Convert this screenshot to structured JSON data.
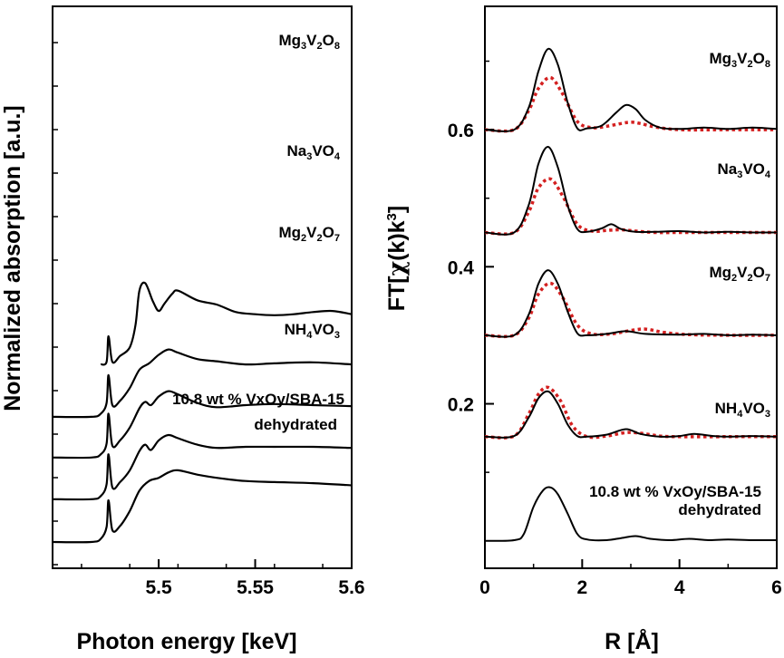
{
  "chart_data": [
    {
      "type": "line",
      "xlabel": "Photon energy [keV]",
      "ylabel": "Normalized absorption [a.u.]",
      "xlim": [
        5.445,
        5.6
      ],
      "x_ticks": [
        "5.5",
        "5.55",
        "5.6"
      ],
      "y_tick_labels": "none",
      "series": [
        {
          "name": "Mg3V2O8",
          "label_text": [
            {
              "t": "Mg"
            },
            {
              "t": "3",
              "sub": true
            },
            {
              "t": "V"
            },
            {
              "t": "2",
              "sub": true
            },
            {
              "t": "O"
            },
            {
              "t": "8",
              "sub": true
            }
          ],
          "x": [
            5.47,
            5.473,
            5.474,
            5.476,
            5.48,
            5.485,
            5.488,
            5.49,
            5.493,
            5.497,
            5.5,
            5.503,
            5.507,
            5.51,
            5.52,
            5.53,
            5.54,
            5.55,
            5.56,
            5.57,
            5.58,
            5.59,
            5.6
          ],
          "y": [
            0.5,
            0.62,
            1.82,
            0.62,
            0.9,
            1.3,
            2.35,
            3.95,
            4.3,
            3.45,
            3.0,
            3.35,
            3.8,
            3.95,
            3.5,
            3.3,
            2.95,
            2.85,
            2.8,
            2.85,
            2.95,
            3.0,
            2.85
          ]
        },
        {
          "name": "Na3VO4",
          "label_text": [
            {
              "t": "Na"
            },
            {
              "t": "3",
              "sub": true
            },
            {
              "t": "VO"
            },
            {
              "t": "4",
              "sub": true
            }
          ],
          "x": [
            5.445,
            5.465,
            5.47,
            5.473,
            5.474,
            5.476,
            5.48,
            5.485,
            5.49,
            5.495,
            5.5,
            5.505,
            5.51,
            5.52,
            5.53,
            5.545,
            5.56,
            5.58,
            5.6
          ],
          "y": [
            0.0,
            0.0,
            0.15,
            0.65,
            1.95,
            0.55,
            0.75,
            1.35,
            2.2,
            2.5,
            2.9,
            3.15,
            3.0,
            2.7,
            2.6,
            2.45,
            2.5,
            2.55,
            2.45
          ]
        },
        {
          "name": "Mg2V2O7",
          "label_text": [
            {
              "t": "Mg"
            },
            {
              "t": "2",
              "sub": true
            },
            {
              "t": "V"
            },
            {
              "t": "2",
              "sub": true
            },
            {
              "t": "O"
            },
            {
              "t": "7",
              "sub": true
            }
          ],
          "x": [
            5.445,
            5.465,
            5.47,
            5.473,
            5.474,
            5.476,
            5.48,
            5.485,
            5.49,
            5.493,
            5.496,
            5.5,
            5.505,
            5.51,
            5.52,
            5.53,
            5.545,
            5.56,
            5.58,
            5.6
          ],
          "y": [
            0.0,
            0.0,
            0.15,
            0.65,
            2.05,
            0.55,
            0.8,
            1.4,
            2.3,
            2.6,
            2.45,
            2.85,
            3.1,
            2.95,
            2.55,
            2.35,
            2.45,
            2.5,
            2.45,
            2.4
          ]
        },
        {
          "name": "NH4VO3",
          "label_text": [
            {
              "t": "NH"
            },
            {
              "t": "4",
              "sub": true
            },
            {
              "t": "VO"
            },
            {
              "t": "3",
              "sub": true
            }
          ],
          "x": [
            5.445,
            5.465,
            5.47,
            5.473,
            5.474,
            5.476,
            5.48,
            5.485,
            5.49,
            5.493,
            5.496,
            5.5,
            5.505,
            5.51,
            5.52,
            5.53,
            5.545,
            5.56,
            5.58,
            5.6
          ],
          "y": [
            0.0,
            0.0,
            0.15,
            0.7,
            2.1,
            0.55,
            0.8,
            1.35,
            2.25,
            2.55,
            2.3,
            2.75,
            3.0,
            2.85,
            2.55,
            2.4,
            2.45,
            2.45,
            2.45,
            2.4
          ]
        },
        {
          "name": "10.8 wt % VxOy/SBA-15 dehydrated",
          "x": [
            5.445,
            5.465,
            5.47,
            5.473,
            5.474,
            5.476,
            5.48,
            5.485,
            5.49,
            5.495,
            5.5,
            5.505,
            5.51,
            5.52,
            5.53,
            5.545,
            5.56,
            5.58,
            5.6
          ],
          "y": [
            0.0,
            0.0,
            0.15,
            0.7,
            1.95,
            0.55,
            0.75,
            1.45,
            2.4,
            2.85,
            3.0,
            3.25,
            3.35,
            3.15,
            3.0,
            2.85,
            2.8,
            2.75,
            2.65
          ]
        }
      ]
    },
    {
      "type": "line",
      "xlabel": "R [Å]",
      "ylabel_parts": [
        {
          "t": "FT["
        },
        {
          "t": "χ",
          "serif": true
        },
        {
          "t": "(k)k"
        },
        {
          "t": "3",
          "sup": true
        },
        {
          "t": "]"
        }
      ],
      "xlim": [
        0,
        6
      ],
      "ylim": [
        -0.04,
        0.78
      ],
      "x_ticks": [
        0,
        2,
        4,
        6
      ],
      "y_ticks": [
        0.2,
        0.4,
        0.6
      ],
      "y_tick_labels": [
        "0.2",
        "0.4",
        "0.6"
      ],
      "series_colors": {
        "experiment": "#000000",
        "fit": "#d42020"
      },
      "series": [
        {
          "name": "Mg3V2O8",
          "label_text": [
            {
              "t": "Mg"
            },
            {
              "t": "3",
              "sub": true
            },
            {
              "t": "V"
            },
            {
              "t": "2",
              "sub": true
            },
            {
              "t": "O"
            },
            {
              "t": "8",
              "sub": true
            }
          ],
          "experiment": {
            "x": [
              0,
              0.6,
              0.9,
              1.1,
              1.3,
              1.5,
              1.7,
              1.9,
              2.1,
              2.4,
              2.7,
              2.9,
              3.1,
              3.3,
              3.6,
              4.0,
              4.5,
              5.0,
              5.5,
              6.0
            ],
            "y": [
              0.6,
              0.6,
              0.632,
              0.685,
              0.718,
              0.695,
              0.64,
              0.602,
              0.602,
              0.606,
              0.625,
              0.636,
              0.63,
              0.614,
              0.603,
              0.601,
              0.603,
              0.601,
              0.603,
              0.601
            ]
          },
          "fit": {
            "x": [
              0,
              0.6,
              0.9,
              1.1,
              1.35,
              1.6,
              1.9,
              2.2,
              2.5,
              2.8,
              3.0,
              3.2,
              3.5,
              4.0,
              5.0,
              6.0
            ],
            "y": [
              0.6,
              0.6,
              0.628,
              0.66,
              0.676,
              0.652,
              0.612,
              0.603,
              0.605,
              0.609,
              0.611,
              0.609,
              0.604,
              0.6,
              0.6,
              0.6
            ]
          }
        },
        {
          "name": "Na3VO4",
          "label_text": [
            {
              "t": "Na"
            },
            {
              "t": "3",
              "sub": true
            },
            {
              "t": "VO"
            },
            {
              "t": "4",
              "sub": true
            }
          ],
          "experiment": {
            "x": [
              0,
              0.6,
              0.9,
              1.1,
              1.3,
              1.5,
              1.7,
              1.9,
              2.1,
              2.4,
              2.6,
              2.8,
              3.1,
              3.5,
              4.0,
              4.5,
              5.0,
              5.5,
              6.0
            ],
            "y": [
              0.45,
              0.45,
              0.49,
              0.55,
              0.575,
              0.545,
              0.49,
              0.455,
              0.451,
              0.456,
              0.462,
              0.455,
              0.451,
              0.451,
              0.452,
              0.45,
              0.451,
              0.45,
              0.45
            ]
          },
          "fit": {
            "x": [
              0,
              0.6,
              0.9,
              1.1,
              1.35,
              1.6,
              1.9,
              2.2,
              2.5,
              2.8,
              3.1,
              3.5,
              4.0,
              5.0,
              6.0
            ],
            "y": [
              0.45,
              0.45,
              0.48,
              0.515,
              0.528,
              0.503,
              0.462,
              0.452,
              0.453,
              0.454,
              0.452,
              0.45,
              0.45,
              0.45,
              0.45
            ]
          }
        },
        {
          "name": "Mg2V2O7",
          "label_text": [
            {
              "t": "Mg"
            },
            {
              "t": "2",
              "sub": true
            },
            {
              "t": "V"
            },
            {
              "t": "2",
              "sub": true
            },
            {
              "t": "O"
            },
            {
              "t": "7",
              "sub": true
            }
          ],
          "experiment": {
            "x": [
              0,
              0.6,
              0.9,
              1.1,
              1.3,
              1.5,
              1.7,
              1.9,
              2.1,
              2.5,
              2.9,
              3.3,
              4.0,
              4.5,
              5.0,
              5.5,
              6.0
            ],
            "y": [
              0.3,
              0.3,
              0.33,
              0.375,
              0.395,
              0.375,
              0.335,
              0.303,
              0.3,
              0.302,
              0.306,
              0.302,
              0.301,
              0.302,
              0.3,
              0.301,
              0.3
            ]
          },
          "fit": {
            "x": [
              0,
              0.6,
              0.9,
              1.1,
              1.35,
              1.6,
              1.9,
              2.2,
              2.6,
              3.0,
              3.3,
              3.7,
              4.2,
              5.0,
              6.0
            ],
            "y": [
              0.3,
              0.3,
              0.325,
              0.36,
              0.376,
              0.355,
              0.315,
              0.302,
              0.302,
              0.307,
              0.309,
              0.304,
              0.301,
              0.3,
              0.3
            ]
          }
        },
        {
          "name": "NH4VO3",
          "label_text": [
            {
              "t": "NH"
            },
            {
              "t": "4",
              "sub": true
            },
            {
              "t": "VO"
            },
            {
              "t": "3",
              "sub": true
            }
          ],
          "experiment": {
            "x": [
              0,
              0.6,
              0.9,
              1.1,
              1.3,
              1.5,
              1.7,
              1.9,
              2.1,
              2.5,
              2.9,
              3.2,
              3.6,
              4.0,
              4.3,
              4.7,
              5.0,
              5.5,
              6.0
            ],
            "y": [
              0.152,
              0.153,
              0.18,
              0.208,
              0.218,
              0.2,
              0.17,
              0.153,
              0.152,
              0.155,
              0.163,
              0.156,
              0.152,
              0.153,
              0.156,
              0.153,
              0.152,
              0.153,
              0.152
            ]
          },
          "fit": {
            "x": [
              0,
              0.6,
              0.9,
              1.1,
              1.3,
              1.55,
              1.8,
              2.1,
              2.5,
              2.9,
              3.2,
              3.6,
              4.0,
              5.0,
              6.0
            ],
            "y": [
              0.152,
              0.153,
              0.185,
              0.214,
              0.224,
              0.205,
              0.168,
              0.152,
              0.153,
              0.158,
              0.157,
              0.153,
              0.152,
              0.152,
              0.152
            ]
          }
        },
        {
          "name": "10.8 wt % VxOy/SBA-15 dehydrated",
          "experiment": {
            "x": [
              0,
              0.6,
              0.8,
              1.0,
              1.2,
              1.35,
              1.5,
              1.7,
              1.9,
              2.1,
              2.5,
              2.8,
              3.1,
              3.4,
              3.8,
              4.2,
              4.6,
              5.0,
              5.5,
              6.0
            ],
            "y": [
              0.0,
              0.001,
              0.01,
              0.05,
              0.074,
              0.078,
              0.068,
              0.04,
              0.01,
              0.002,
              0.001,
              0.004,
              0.007,
              0.003,
              0.001,
              0.003,
              0.001,
              0.002,
              0.001,
              0.001
            ]
          }
        }
      ]
    }
  ]
}
